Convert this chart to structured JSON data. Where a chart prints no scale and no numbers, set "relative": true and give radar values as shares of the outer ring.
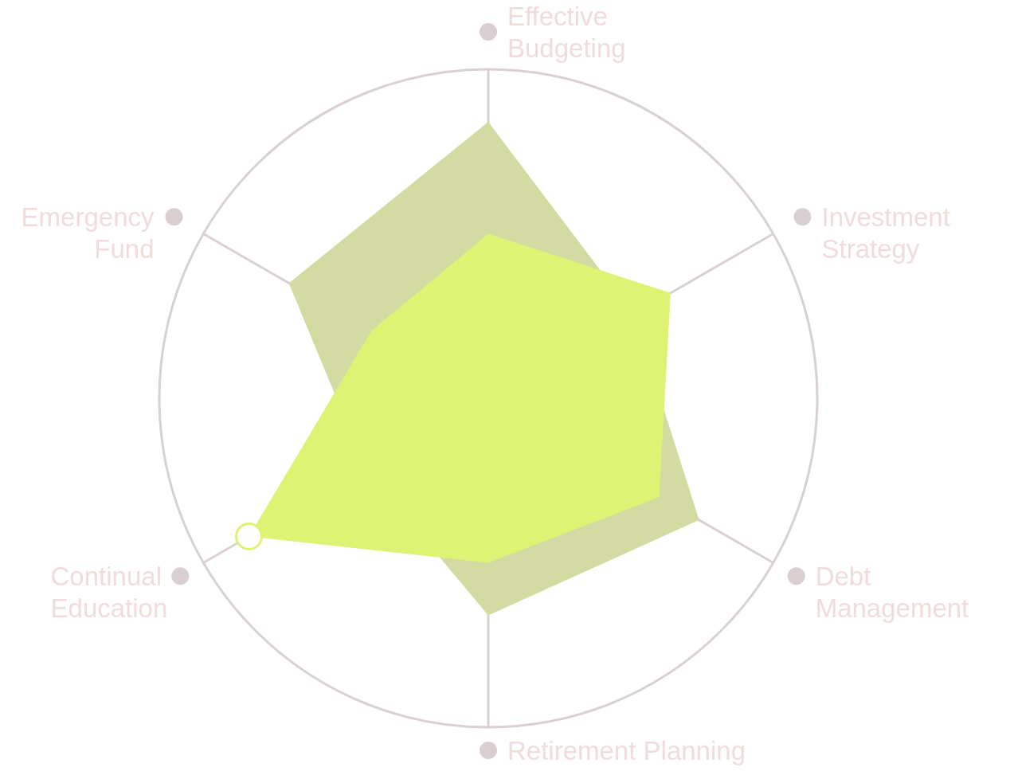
{
  "chart_data": {
    "type": "radar",
    "relative": true,
    "grid": true,
    "categories": [
      "Effective Budgeting",
      "Investment Strategy",
      "Debt Management",
      "Retirement Planning",
      "Continual Education",
      "Emergency Fund"
    ],
    "series": [
      {
        "color": "#d3dba3",
        "values": [
          0.84,
          0.51,
          0.74,
          0.66,
          0.43,
          0.7
        ]
      },
      {
        "color": "#dcf373",
        "values": [
          0.5,
          0.64,
          0.6,
          0.5,
          0.84,
          0.41
        ]
      }
    ]
  }
}
